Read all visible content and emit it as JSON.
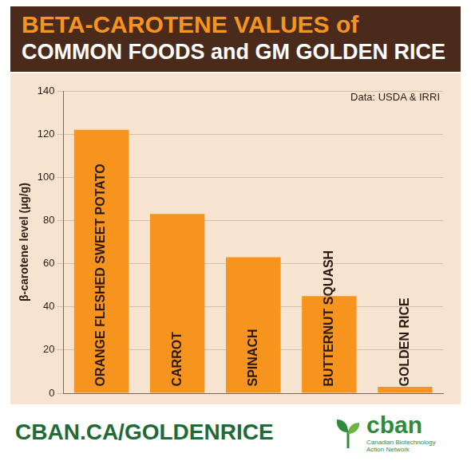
{
  "chart_data": {
    "type": "bar",
    "title": [
      "BETA-CAROTENE VALUES of",
      "COMMON FOODS and GM GOLDEN RICE"
    ],
    "y_label": "β-carotene level (µg/g)",
    "annotations": [
      "Data: USDA & IRRI",
      "CBAN.CA/GOLDENRICE",
      "cban",
      "Canadian Biotechnology Action Network"
    ],
    "categories": [
      "ORANGE FLESHED SWEET POTATO",
      "CARROT",
      "SPINACH",
      "BUTTERNUT SQUASH",
      "GOLDEN RICE"
    ],
    "values": [
      122,
      83,
      63,
      45,
      3
    ],
    "color": "#f7941d",
    "ylim": [
      0,
      140
    ],
    "yticks": [
      0,
      20,
      40,
      60,
      80,
      100,
      120,
      140
    ],
    "grid": true,
    "tick_labels": "y"
  }
}
